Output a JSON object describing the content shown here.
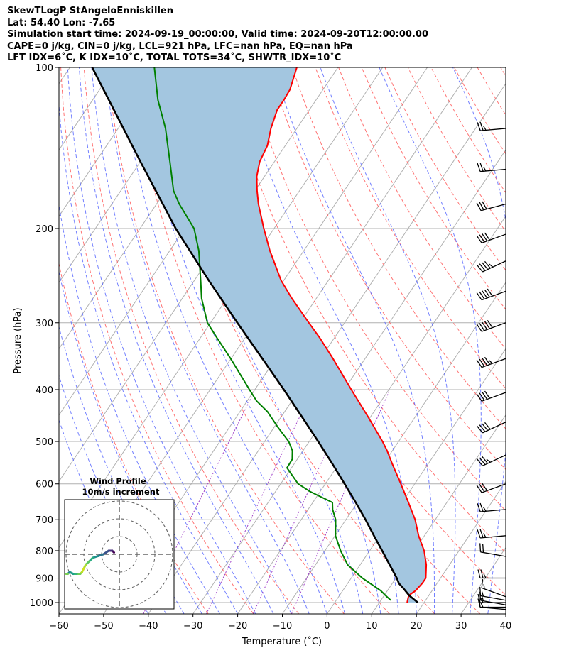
{
  "header": {
    "line1": "SkewTLogP StAngeloEnniskillen",
    "line2": "Lat: 54.40   Lon: -7.65",
    "line3": "Simulation start time: 2024-09-19_00:00:00, Valid time: 2024-09-20T12:00:00.00",
    "line4": "CAPE=0 j/kg, CIN=0 j/kg, LCL=921 hPa, LFC=nan hPa, EQ=nan hPa",
    "line5": "LFT IDX=6˚C, K IDX=10˚C, TOTAL TOTS=34˚C, SHWTR_IDX=10˚C"
  },
  "chart_data": {
    "type": "line",
    "subtype": "skew-T log-P diagram",
    "xlabel": "Temperature (˚C)",
    "ylabel": "Pressure (hPa)",
    "xlim": [
      -60,
      40
    ],
    "ylim_hpa": [
      1050,
      100
    ],
    "x_ticks": [
      -60,
      -50,
      -40,
      -30,
      -20,
      -10,
      0,
      10,
      20,
      30,
      40
    ],
    "y_ticks": [
      100,
      200,
      300,
      400,
      500,
      600,
      700,
      800,
      900,
      1000
    ],
    "y_scale": "log",
    "grid": true,
    "colors": {
      "temperature": "#ff0000",
      "dewpoint": "#008000",
      "parcel": "#000000",
      "cape_fill": "#a3c6e0",
      "dry_adiabat": "#ff6464",
      "moist_adiabat": "#5060ff",
      "mixing_ratio": "#a040c8",
      "isotherm": "#b0b0b0"
    },
    "temperature_profile": {
      "pressure": [
        1000,
        970,
        950,
        920,
        900,
        850,
        800,
        750,
        700,
        650,
        600,
        550,
        520,
        500,
        450,
        400,
        350,
        320,
        300,
        270,
        250,
        220,
        200,
        180,
        170,
        160,
        150,
        140,
        130,
        120,
        115,
        110,
        100
      ],
      "temperature": [
        16.2,
        15.5,
        16.3,
        16.7,
        16.7,
        14.8,
        12.2,
        8.7,
        5.5,
        1.4,
        -3.1,
        -8.1,
        -11.2,
        -13.6,
        -20.5,
        -28.4,
        -37.2,
        -43.3,
        -48.0,
        -55.5,
        -60.6,
        -67.6,
        -72.3,
        -77.2,
        -79.5,
        -81.7,
        -83.3,
        -84.0,
        -85.8,
        -87.2,
        -87.2,
        -87.4,
        -89.2
      ]
    },
    "dewpoint_profile": {
      "pressure": [
        990,
        970,
        950,
        900,
        850,
        800,
        750,
        700,
        670,
        650,
        620,
        600,
        560,
        540,
        520,
        500,
        470,
        440,
        420,
        400,
        350,
        320,
        300,
        270,
        250,
        220,
        200,
        180,
        170,
        150,
        140,
        130,
        115,
        100
      ],
      "dewpoint": [
        12.2,
        10.3,
        8.5,
        2.5,
        -2.8,
        -6.5,
        -9.9,
        -12.3,
        -14.5,
        -15.6,
        -22.3,
        -26.1,
        -31.0,
        -31.1,
        -32.4,
        -34.6,
        -39.2,
        -43.8,
        -47.9,
        -51.2,
        -60.1,
        -66.3,
        -70.7,
        -75.7,
        -78.6,
        -83.5,
        -87.9,
        -94.9,
        -98.2,
        -103.4,
        -106.3,
        -109.4,
        -115.4,
        -121.1
      ]
    },
    "parcel_profile": {
      "pressure": [
        1000,
        970,
        940,
        921,
        900,
        850,
        800,
        750,
        700,
        650,
        600,
        550,
        500,
        450,
        400,
        350,
        300,
        250,
        200,
        150,
        100
      ],
      "temperature": [
        18.6,
        15.6,
        13.2,
        11.5,
        10.2,
        6.6,
        2.8,
        -1.3,
        -5.6,
        -10.4,
        -15.7,
        -21.5,
        -28.0,
        -35.3,
        -43.5,
        -53.0,
        -64.0,
        -76.8,
        -92.0,
        -110.0,
        -135.0
      ]
    },
    "wind_barbs": {
      "pressure": [
        130,
        155,
        180,
        205,
        230,
        262,
        300,
        350,
        405,
        460,
        530,
        600,
        670,
        750,
        820,
        900,
        975,
        990,
        1000,
        1010,
        1020,
        1030
      ],
      "speed_ms": [
        25,
        25,
        30,
        40,
        45,
        50,
        50,
        45,
        40,
        40,
        35,
        30,
        25,
        25,
        20,
        25,
        15,
        15,
        15,
        15,
        15,
        10
      ],
      "direction_deg": [
        265,
        265,
        255,
        250,
        245,
        250,
        250,
        250,
        250,
        245,
        245,
        250,
        265,
        265,
        280,
        270,
        290,
        280,
        270,
        280,
        270,
        275
      ]
    },
    "wind_profile_inset": {
      "title_line1": "Wind Profile",
      "title_line2": "10m/s increment",
      "rings_ms": [
        10,
        20,
        30
      ],
      "hodograph_u": [
        -3,
        -4,
        -6,
        -9,
        -12,
        -15,
        -17,
        -19,
        -20,
        -21,
        -22,
        -24,
        -26,
        -28,
        -29,
        -30
      ],
      "hodograph_v": [
        1,
        2,
        2,
        0,
        -1,
        -2,
        -4,
        -6,
        -8,
        -10,
        -11,
        -11,
        -11,
        -10,
        -11,
        -11
      ]
    }
  }
}
